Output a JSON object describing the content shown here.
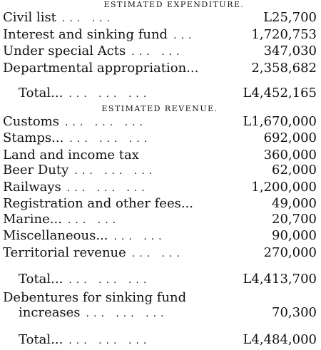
{
  "expenditure": {
    "heading": "ESTIMATED EXPENDITURE.",
    "items": [
      {
        "label": "Civil list",
        "dots": "... ...",
        "value": "L25,700"
      },
      {
        "label": "Interest and sinking fund",
        "dots": "...",
        "value": "1,720,753"
      },
      {
        "label": "Under special Acts",
        "dots": "... ...",
        "value": "347,030"
      },
      {
        "label": "Departmental appropriation...",
        "dots": "",
        "value": "2,358,682"
      }
    ],
    "total": {
      "label": "Total...",
      "dots": "... ... ...",
      "value": "L4,452,165"
    }
  },
  "revenue": {
    "heading": "ESTIMATED REVENUE.",
    "items": [
      {
        "label": "Customs",
        "dots": "... ... ...",
        "value": "L1,670,000"
      },
      {
        "label": "Stamps...",
        "dots": "... ... ...",
        "value": "692,000"
      },
      {
        "label": "Land and income tax",
        "dots": "",
        "value": "360,000"
      },
      {
        "label": "Beer Duty",
        "dots": "... ... ...",
        "value": "62,000"
      },
      {
        "label": "Railways",
        "dots": "... ... ...",
        "value": "1,200,000"
      },
      {
        "label": "Registration and other fees...",
        "dots": "",
        "value": "49,000"
      },
      {
        "label": "Marine...",
        "dots": "... ...",
        "value": "20,700"
      },
      {
        "label": "Miscellaneous...",
        "dots": "... ...",
        "value": "90,000"
      },
      {
        "label": "Territorial revenue",
        "dots": "... ...",
        "value": "270,000"
      }
    ],
    "total": {
      "label": "Total...",
      "dots": "... ... ...",
      "value": "L4,413,700"
    },
    "debentures": {
      "label_line1": "Debentures for sinking fund",
      "label_line2": "increases",
      "dots": "... ... ...",
      "value": "70,300"
    },
    "grand_total": {
      "label": "Total...",
      "dots": "... ... ...",
      "value": "L4,484,000"
    }
  }
}
